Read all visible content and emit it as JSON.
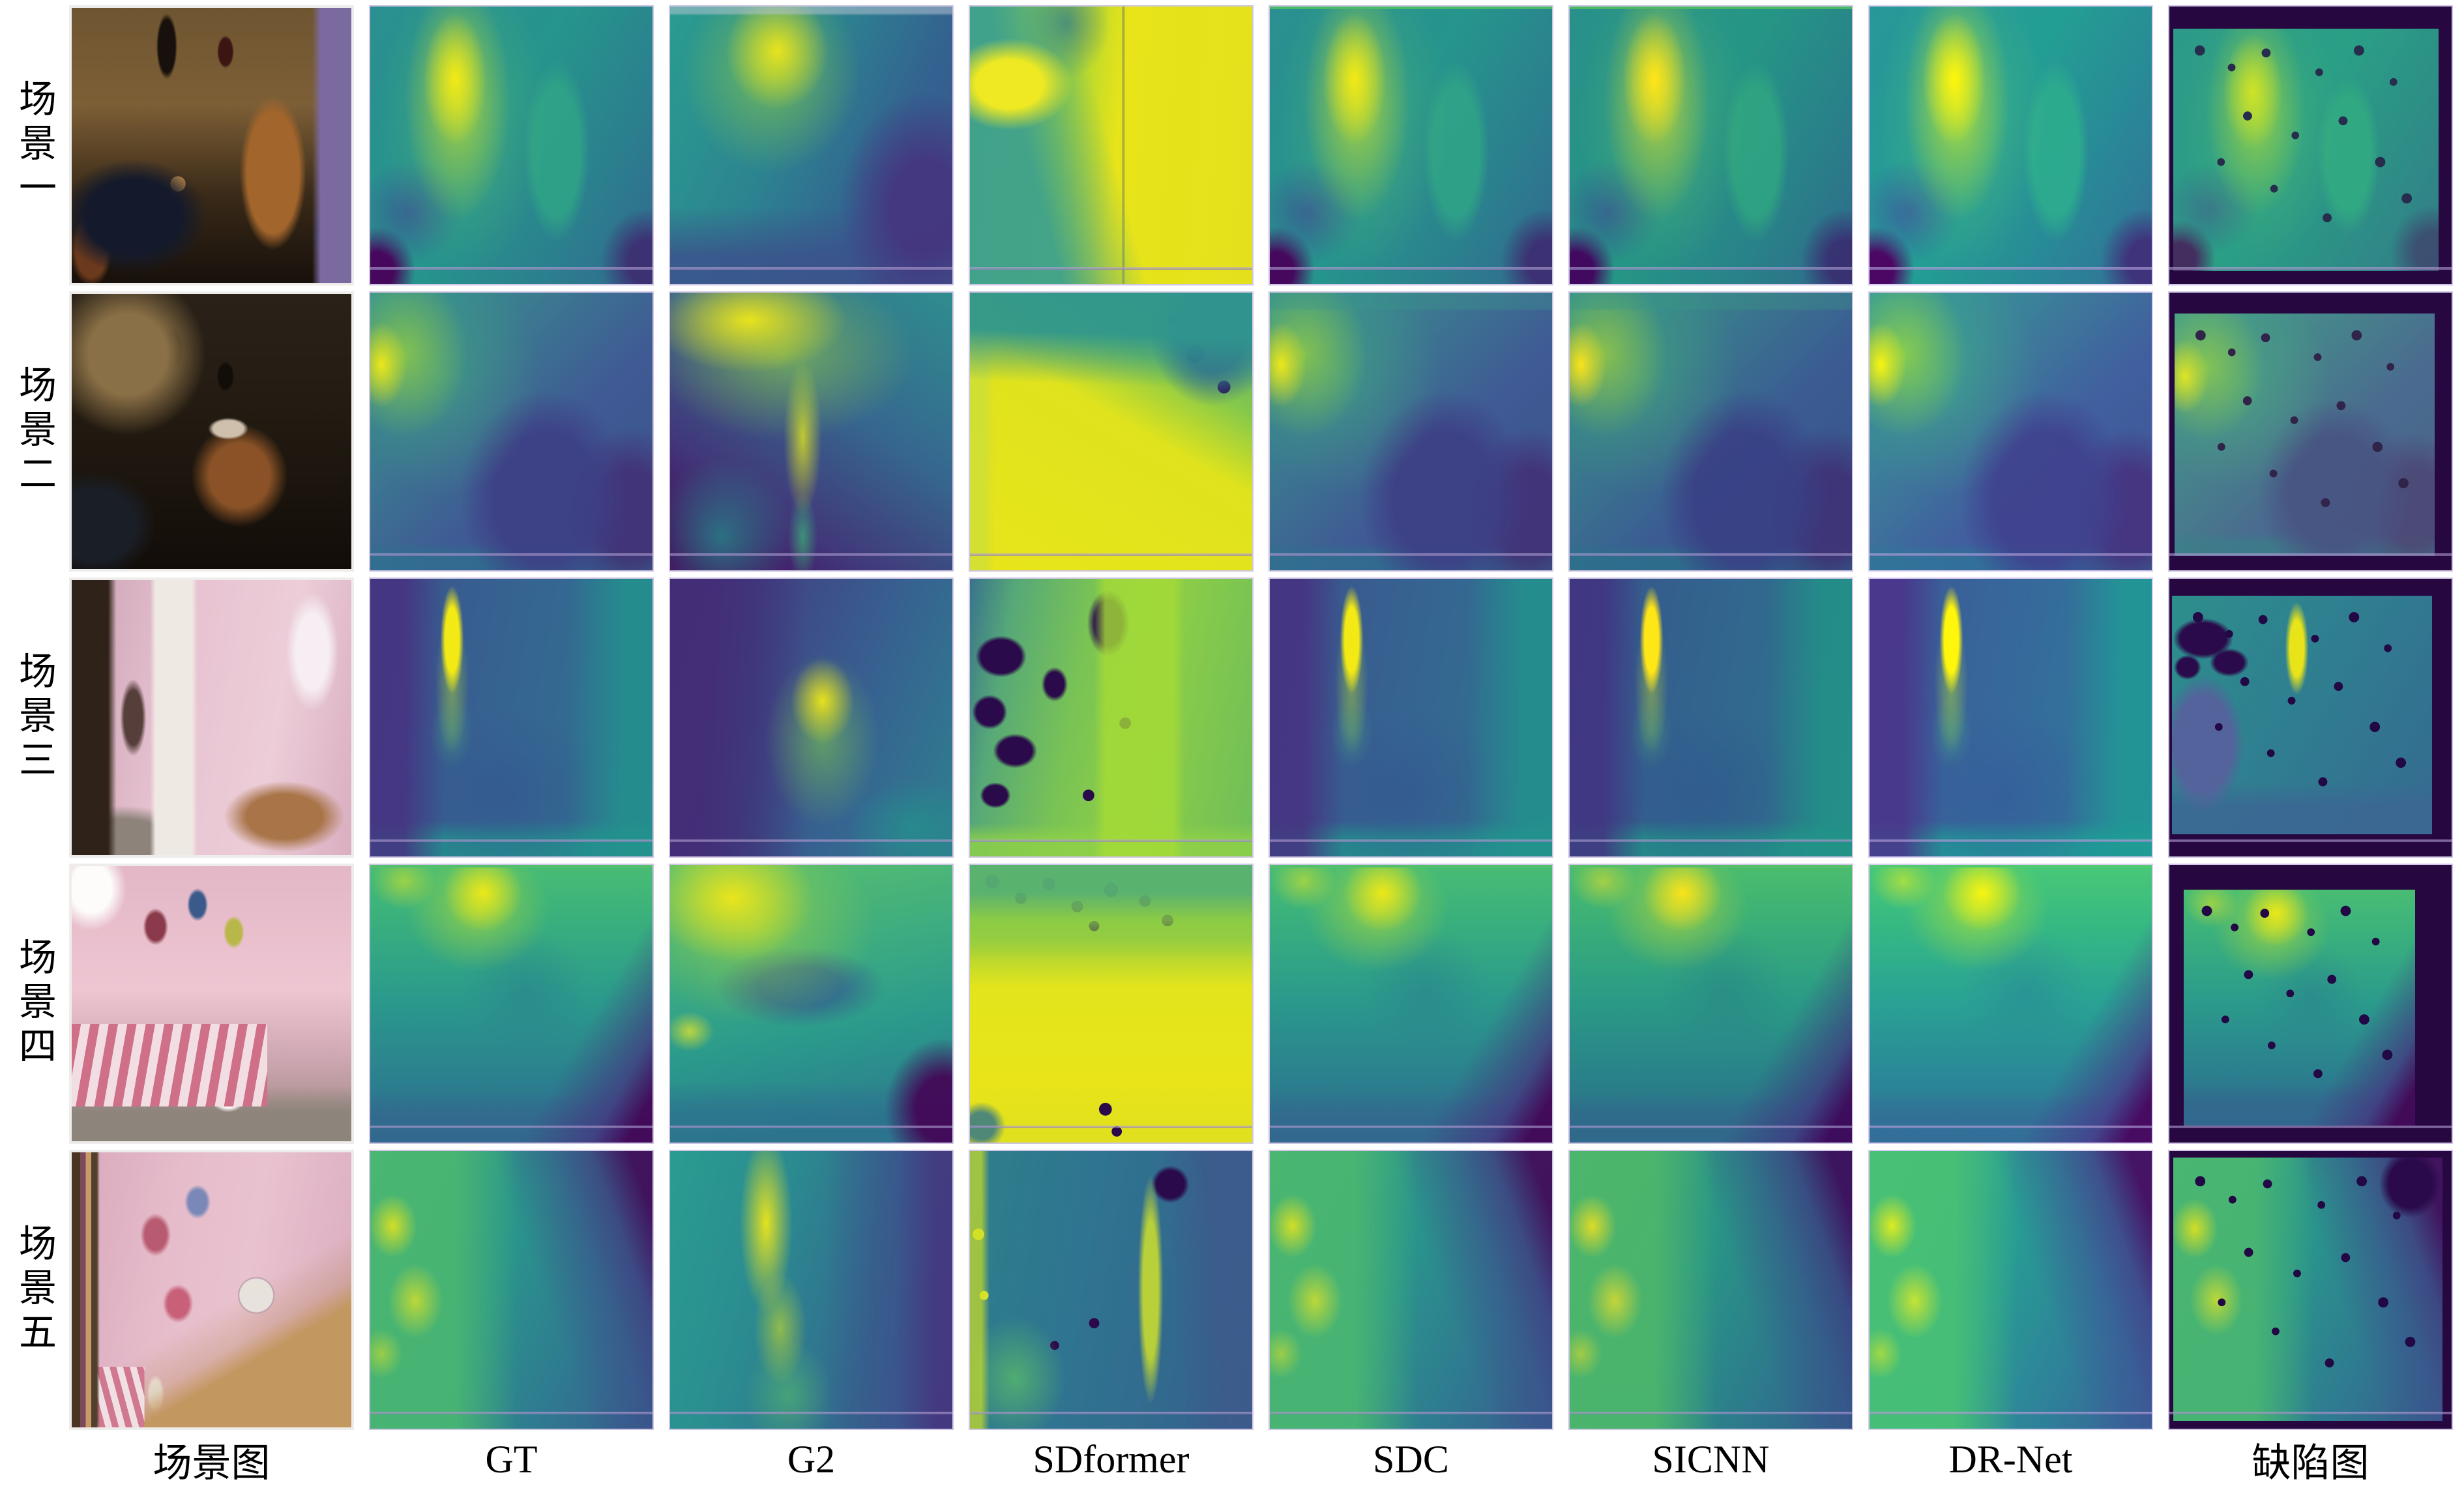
{
  "figure": {
    "rows": [
      {
        "id": "scene-1",
        "label": "场景一"
      },
      {
        "id": "scene-2",
        "label": "场景二"
      },
      {
        "id": "scene-3",
        "label": "场景三"
      },
      {
        "id": "scene-4",
        "label": "场景四"
      },
      {
        "id": "scene-5",
        "label": "场景五"
      }
    ],
    "columns": [
      {
        "id": "scene-photo",
        "label": "场景图"
      },
      {
        "id": "gt",
        "label": "GT"
      },
      {
        "id": "g2",
        "label": "G2"
      },
      {
        "id": "sdformer",
        "label": "SDformer"
      },
      {
        "id": "sdc",
        "label": "SDC"
      },
      {
        "id": "sicnn",
        "label": "SICNN"
      },
      {
        "id": "dr-net",
        "label": "DR-Net"
      },
      {
        "id": "defect-map",
        "label": "缺陷图"
      }
    ],
    "palette": {
      "background": "#ffffff",
      "text": "#000000",
      "viridis_dark_purple": "#440154",
      "viridis_purple": "#46327e",
      "viridis_blue": "#3b528b",
      "viridis_steel_blue": "#31688e",
      "viridis_teal": "#21918c",
      "viridis_green": "#35b779",
      "viridis_lime": "#a5db36",
      "viridis_yellow": "#fde725",
      "defect_frame": "#2a0a4a",
      "map_border": "#cfc5e4"
    }
  }
}
